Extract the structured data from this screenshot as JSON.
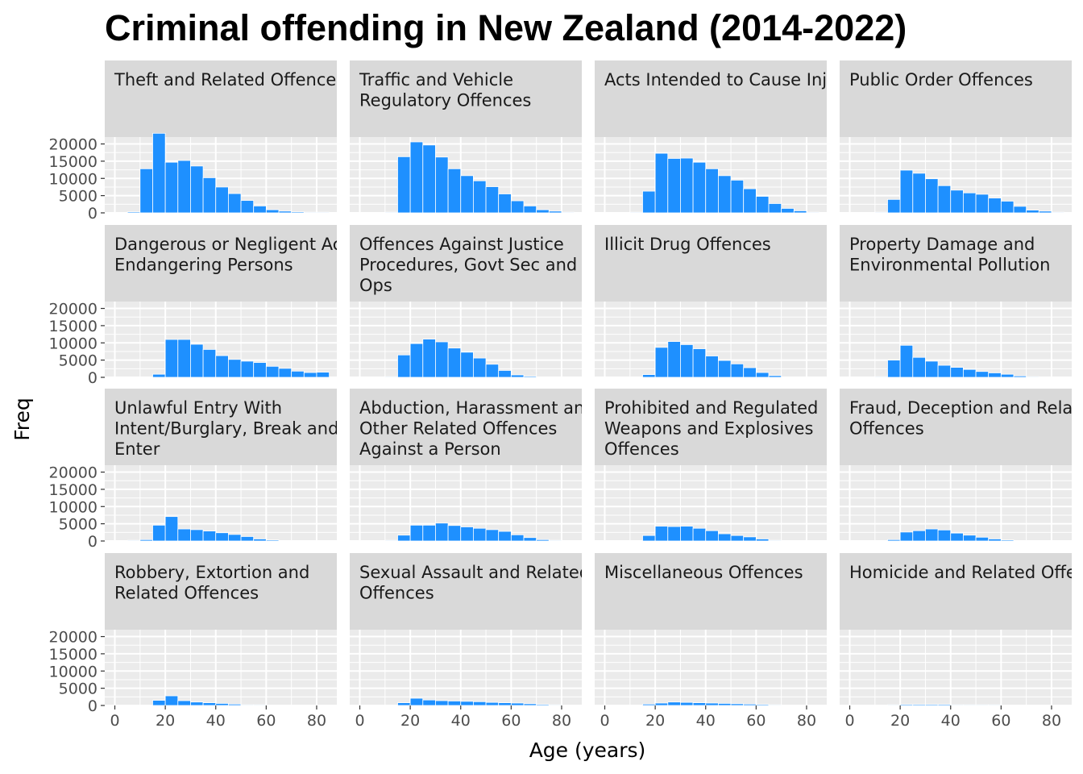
{
  "chart_data": {
    "type": "bar",
    "title": "Criminal offending in New Zealand (2014-2022)",
    "xlabel": "Age (years)",
    "ylabel": "Freq",
    "xlim": [
      -4,
      88
    ],
    "ylim": [
      0,
      22000
    ],
    "x_ticks": [
      0,
      20,
      40,
      60,
      80
    ],
    "y_ticks": [
      0,
      5000,
      10000,
      15000,
      20000
    ],
    "bin_width": 5,
    "bin_starts": [
      5,
      10,
      15,
      20,
      25,
      30,
      35,
      40,
      45,
      50,
      55,
      60,
      65,
      70,
      75,
      80
    ],
    "bar_color": "#1E90FF",
    "panel_background": "#EBEBEB",
    "strip_background": "#D9D9D9",
    "grid": true,
    "panels": [
      {
        "label_lines": [
          "Theft and Related Offences"
        ],
        "values": [
          300,
          12800,
          23100,
          14700,
          15200,
          13600,
          10200,
          7500,
          5600,
          3600,
          2000,
          900,
          500,
          300,
          200,
          200
        ]
      },
      {
        "label_lines": [
          "Traffic and Vehicle",
          "Regulatory Offences"
        ],
        "values": [
          0,
          200,
          16300,
          20600,
          19700,
          16200,
          12800,
          10800,
          9300,
          7600,
          5500,
          3500,
          2000,
          900,
          500,
          200
        ]
      },
      {
        "label_lines": [
          "Acts Intended to Cause Injury"
        ],
        "values": [
          0,
          200,
          6300,
          17300,
          15800,
          15900,
          14700,
          12800,
          10800,
          9500,
          7000,
          4800,
          2700,
          1300,
          600,
          200
        ]
      },
      {
        "label_lines": [
          "Public Order Offences"
        ],
        "values": [
          0,
          200,
          3900,
          12400,
          11500,
          9900,
          7900,
          6600,
          5800,
          5400,
          4300,
          3400,
          1900,
          800,
          500,
          200
        ]
      },
      {
        "label_lines": [
          "Dangerous or Negligent Acts",
          "Endangering Persons"
        ],
        "values": [
          0,
          0,
          900,
          11000,
          11000,
          9600,
          8100,
          6300,
          5200,
          4700,
          4300,
          3200,
          2600,
          1800,
          1400,
          1500
        ]
      },
      {
        "label_lines": [
          "Offences Against Justice",
          "Procedures, Govt Sec and Govt",
          "Ops"
        ],
        "values": [
          0,
          200,
          6500,
          9800,
          11100,
          10300,
          8500,
          7300,
          5600,
          3800,
          2000,
          700,
          300,
          100,
          0,
          0
        ]
      },
      {
        "label_lines": [
          "Illicit Drug Offences"
        ],
        "values": [
          0,
          0,
          800,
          8700,
          10400,
          9500,
          8300,
          6200,
          4900,
          3900,
          2800,
          1400,
          500,
          100,
          0,
          0
        ]
      },
      {
        "label_lines": [
          "Property Damage and",
          "Environmental Pollution"
        ],
        "values": [
          0,
          200,
          5000,
          9300,
          5800,
          4700,
          3500,
          2900,
          2300,
          1700,
          1300,
          900,
          400,
          200,
          0,
          0
        ]
      },
      {
        "label_lines": [
          "Unlawful Entry With",
          "Intent/Burglary, Break and",
          "Enter"
        ],
        "values": [
          200,
          400,
          4600,
          7100,
          3500,
          3300,
          2900,
          2400,
          1900,
          1300,
          600,
          300,
          0,
          0,
          0,
          0
        ]
      },
      {
        "label_lines": [
          "Abduction, Harassment and",
          "Other Related Offences",
          "Against a Person"
        ],
        "values": [
          0,
          200,
          1700,
          4600,
          4600,
          5200,
          4500,
          4100,
          3700,
          3300,
          2800,
          1800,
          1000,
          400,
          200,
          0
        ]
      },
      {
        "label_lines": [
          "Prohibited and Regulated",
          "Weapons and Explosives",
          "Offences"
        ],
        "values": [
          0,
          0,
          1600,
          4300,
          4200,
          4300,
          3700,
          3000,
          2100,
          1600,
          1200,
          600,
          200,
          0,
          0,
          0
        ]
      },
      {
        "label_lines": [
          "Fraud, Deception and Related",
          "Offences"
        ],
        "values": [
          0,
          0,
          400,
          2600,
          3000,
          3500,
          3200,
          2300,
          1700,
          1100,
          600,
          300,
          0,
          0,
          0,
          0
        ]
      },
      {
        "label_lines": [
          "Robbery, Extortion and",
          "Related Offences"
        ],
        "values": [
          0,
          0,
          1500,
          2800,
          1400,
          1000,
          800,
          600,
          400,
          200,
          200,
          0,
          0,
          0,
          0,
          0
        ]
      },
      {
        "label_lines": [
          "Sexual Assault and Related",
          "Offences"
        ],
        "values": [
          0,
          0,
          800,
          2100,
          1600,
          1400,
          1300,
          1200,
          1100,
          900,
          800,
          700,
          500,
          300,
          200,
          100
        ]
      },
      {
        "label_lines": [
          "Miscellaneous Offences"
        ],
        "values": [
          0,
          0,
          400,
          700,
          1000,
          900,
          800,
          700,
          600,
          500,
          400,
          300,
          200,
          100,
          0,
          0
        ]
      },
      {
        "label_lines": [
          "Homicide and Related Offences"
        ],
        "values": [
          0,
          0,
          200,
          300,
          300,
          300,
          300,
          200,
          200,
          200,
          200,
          100,
          100,
          0,
          0,
          0
        ]
      }
    ]
  }
}
